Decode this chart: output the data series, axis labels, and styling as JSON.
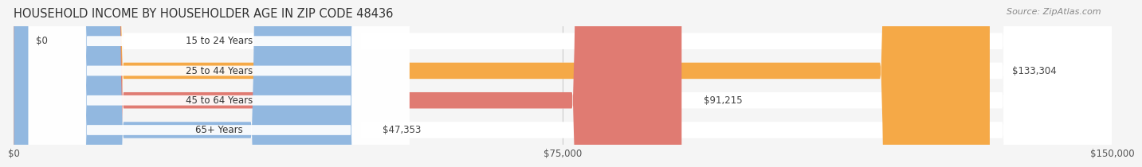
{
  "title": "HOUSEHOLD INCOME BY HOUSEHOLDER AGE IN ZIP CODE 48436",
  "source": "Source: ZipAtlas.com",
  "categories": [
    "15 to 24 Years",
    "25 to 44 Years",
    "45 to 64 Years",
    "65+ Years"
  ],
  "values": [
    0,
    133304,
    91215,
    47353
  ],
  "bar_colors": [
    "#F9A8BC",
    "#F5A947",
    "#E07B72",
    "#92B8E0"
  ],
  "label_colors": [
    "#F9A8BC",
    "#F5A947",
    "#E07B72",
    "#92B8E0"
  ],
  "label_bg": [
    "#F9A8BC",
    "#F5A947",
    "#E07B72",
    "#92B8E0"
  ],
  "value_labels": [
    "$0",
    "$133,304",
    "$91,215",
    "$47,353"
  ],
  "xlim": [
    0,
    150000
  ],
  "xticks": [
    0,
    75000,
    150000
  ],
  "xtick_labels": [
    "$0",
    "$75,000",
    "$150,000"
  ],
  "bg_color": "#f5f5f5",
  "bar_bg_color": "#e8e8e8",
  "bar_height": 0.55,
  "figsize": [
    14.06,
    2.33
  ]
}
